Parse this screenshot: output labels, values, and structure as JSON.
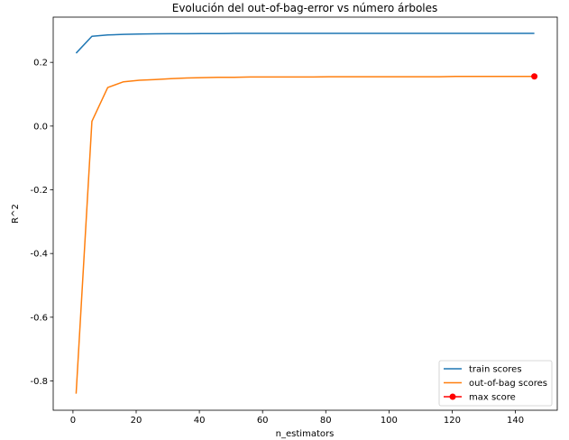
{
  "chart_data": {
    "type": "line",
    "title": "Evolución del out-of-bag-error vs número árboles",
    "xlabel": "n_estimators",
    "ylabel": "R^2",
    "xlim": [
      -6.25,
      153.25
    ],
    "ylim": [
      -0.892,
      0.342
    ],
    "xticks": [
      0,
      20,
      40,
      60,
      80,
      100,
      120,
      140
    ],
    "xtick_labels": [
      "0",
      "20",
      "40",
      "60",
      "80",
      "100",
      "120",
      "140"
    ],
    "yticks": [
      -0.8,
      -0.6,
      -0.4,
      -0.2,
      0.0,
      0.2
    ],
    "ytick_labels": [
      "-0.8",
      "-0.6",
      "-0.4",
      "-0.2",
      "0.0",
      "0.2"
    ],
    "grid": false,
    "legend_position": "lower-right",
    "series": [
      {
        "name": "train scores",
        "color": "#1f77b4",
        "marker": "none",
        "x": [
          1,
          6,
          11,
          16,
          21,
          26,
          31,
          36,
          41,
          46,
          51,
          56,
          61,
          66,
          71,
          76,
          81,
          86,
          91,
          96,
          101,
          106,
          111,
          116,
          121,
          126,
          131,
          136,
          141,
          146
        ],
        "y": [
          0.229,
          0.282,
          0.286,
          0.288,
          0.289,
          0.2895,
          0.29,
          0.29,
          0.2905,
          0.2905,
          0.291,
          0.291,
          0.291,
          0.291,
          0.291,
          0.291,
          0.291,
          0.291,
          0.291,
          0.291,
          0.291,
          0.291,
          0.291,
          0.291,
          0.291,
          0.291,
          0.291,
          0.291,
          0.291,
          0.291
        ]
      },
      {
        "name": "out-of-bag scores",
        "color": "#ff7f0e",
        "marker": "none",
        "x": [
          1,
          6,
          11,
          16,
          21,
          26,
          31,
          36,
          41,
          46,
          51,
          56,
          61,
          66,
          71,
          76,
          81,
          86,
          91,
          96,
          101,
          106,
          111,
          116,
          121,
          126,
          131,
          136,
          141,
          146
        ],
        "y": [
          -0.84,
          0.015,
          0.121,
          0.139,
          0.144,
          0.146,
          0.149,
          0.151,
          0.152,
          0.153,
          0.153,
          0.154,
          0.154,
          0.154,
          0.154,
          0.154,
          0.155,
          0.155,
          0.155,
          0.155,
          0.155,
          0.155,
          0.155,
          0.155,
          0.156,
          0.156,
          0.156,
          0.156,
          0.156,
          0.156
        ]
      },
      {
        "name": "max score",
        "color": "#ff0000",
        "marker": "circle",
        "x": [
          146
        ],
        "y": [
          0.156
        ]
      }
    ]
  }
}
